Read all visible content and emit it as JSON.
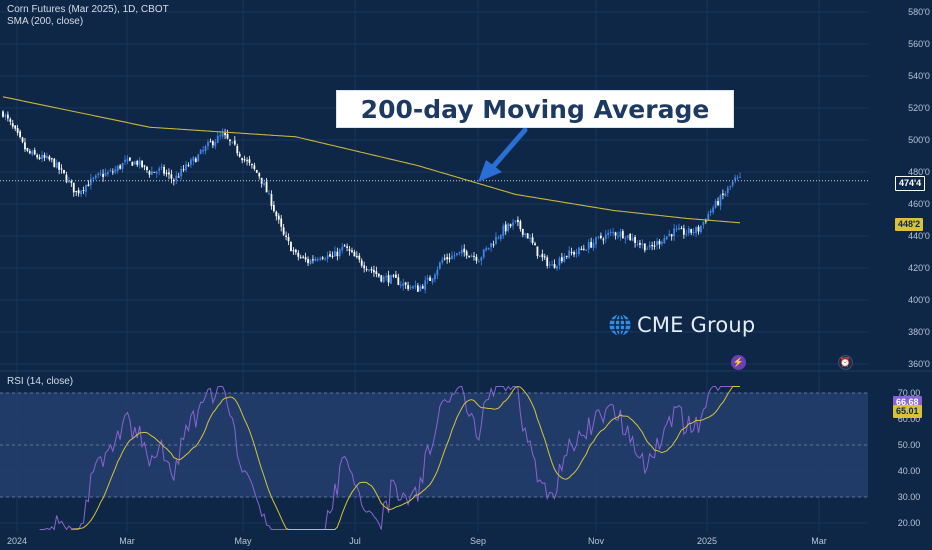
{
  "header": {
    "symbol_line": "Corn Futures (Mar 2025), 1D, CBOT",
    "indicator_line": "SMA (200, close)"
  },
  "callout": {
    "text": "200-day Moving Average"
  },
  "logo": {
    "text": "CME Group",
    "icon": "cme-globe-icon"
  },
  "rsi_header": {
    "text": "RSI (14, close)"
  },
  "tags": {
    "last_price": "474'4",
    "sma_value": "448'2",
    "rsi_value": "66.68",
    "rsi_ma_value": "65.01"
  },
  "colors": {
    "background": "#0f2747",
    "candle_up": "#3f86e8",
    "candle_down": "#ffffff",
    "sma": "#c9b53a",
    "rsi": "#8a63d2",
    "rsi_ma": "#d8c13a",
    "rsi_band": "#24406e"
  },
  "chart_data": [
    {
      "type": "candlestick",
      "title": "Corn Futures (Mar 2025), 1D, CBOT",
      "x_tick_labels": [
        "2024",
        "Mar",
        "May",
        "Jul",
        "Sep",
        "Nov",
        "2025",
        "Mar"
      ],
      "y_tick_labels": [
        "360'0",
        "380'0",
        "400'0",
        "420'0",
        "440'0",
        "460'0",
        "480'0",
        "500'0",
        "520'0",
        "540'0",
        "560'0",
        "580'0"
      ],
      "ylim": [
        360,
        580
      ],
      "price_path_approx": [
        [
          0,
          517
        ],
        [
          5,
          505
        ],
        [
          10,
          492
        ],
        [
          15,
          489
        ],
        [
          20,
          487
        ],
        [
          25,
          478
        ],
        [
          30,
          467
        ],
        [
          35,
          473
        ],
        [
          40,
          478
        ],
        [
          45,
          480
        ],
        [
          50,
          486
        ],
        [
          55,
          486
        ],
        [
          60,
          480
        ],
        [
          65,
          481
        ],
        [
          70,
          475
        ],
        [
          75,
          483
        ],
        [
          80,
          490
        ],
        [
          85,
          498
        ],
        [
          90,
          503
        ],
        [
          95,
          495
        ],
        [
          100,
          486
        ],
        [
          105,
          478
        ],
        [
          110,
          461
        ],
        [
          115,
          440
        ],
        [
          120,
          428
        ],
        [
          125,
          424
        ],
        [
          130,
          428
        ],
        [
          135,
          427
        ],
        [
          140,
          433
        ],
        [
          145,
          425
        ],
        [
          150,
          420
        ],
        [
          155,
          414
        ],
        [
          160,
          413
        ],
        [
          165,
          409
        ],
        [
          170,
          407
        ],
        [
          175,
          413
        ],
        [
          180,
          425
        ],
        [
          185,
          428
        ],
        [
          190,
          430
        ],
        [
          195,
          426
        ],
        [
          200,
          435
        ],
        [
          205,
          444
        ],
        [
          210,
          448
        ],
        [
          215,
          440
        ],
        [
          220,
          427
        ],
        [
          225,
          421
        ],
        [
          230,
          428
        ],
        [
          235,
          430
        ],
        [
          240,
          434
        ],
        [
          245,
          439
        ],
        [
          250,
          442
        ],
        [
          255,
          441
        ],
        [
          260,
          436
        ],
        [
          265,
          432
        ],
        [
          270,
          438
        ],
        [
          275,
          443
        ],
        [
          280,
          442
        ],
        [
          285,
          444
        ],
        [
          290,
          456
        ],
        [
          295,
          465
        ],
        [
          300,
          475
        ],
        [
          302,
          475
        ]
      ],
      "series": [
        {
          "name": "SMA (200, close)",
          "values_approx": [
            [
              0,
              527
            ],
            [
              60,
              508
            ],
            [
              120,
              502
            ],
            [
              170,
              484
            ],
            [
              210,
              466
            ],
            [
              250,
              456
            ],
            [
              280,
              451
            ],
            [
              302,
              448.25
            ]
          ]
        }
      ],
      "last_price": 474.5,
      "sma_last": 448.25
    },
    {
      "type": "line",
      "title": "RSI (14, close)",
      "y_tick_labels": [
        "20.00",
        "30.00",
        "40.00",
        "50.00",
        "60.00",
        "70.00"
      ],
      "ylim": [
        17.5,
        72.5
      ],
      "bands": [
        30,
        70
      ],
      "midline": 50,
      "rsi_last": 66.68,
      "rsi_ma_last": 65.01
    }
  ]
}
